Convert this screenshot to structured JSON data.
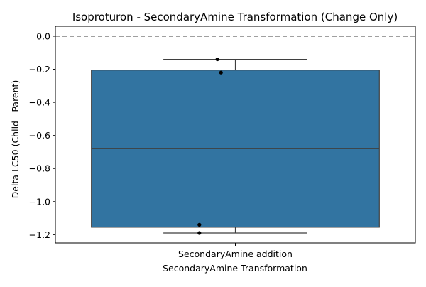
{
  "chart_data": {
    "type": "box",
    "title": "Isoproturon - SecondaryAmine Transformation (Change Only)",
    "xlabel": "SecondaryAmine Transformation",
    "ylabel": "Delta LC50 (Child - Parent)",
    "categories": [
      "SecondaryAmine addition"
    ],
    "ylim": [
      -1.25,
      0.06
    ],
    "yticks": [
      0.0,
      -0.2,
      -0.4,
      -0.6,
      -0.8,
      -1.0,
      -1.2
    ],
    "ytick_labels": [
      "0.0",
      "−0.2",
      "−0.4",
      "−0.6",
      "−0.8",
      "−1.0",
      "−1.2"
    ],
    "reference_line": {
      "y": 0.0,
      "style": "dashed",
      "color": "#808080"
    },
    "boxes": [
      {
        "category": "SecondaryAmine addition",
        "whisker_low": -1.19,
        "q1": -1.155,
        "median": -0.68,
        "q3": -0.205,
        "whisker_high": -0.14,
        "color": "#3274a1"
      }
    ],
    "points": [
      {
        "category": "SecondaryAmine addition",
        "y": -0.14,
        "jitter": -0.05
      },
      {
        "category": "SecondaryAmine addition",
        "y": -0.22,
        "jitter": -0.04
      },
      {
        "category": "SecondaryAmine addition",
        "y": -1.14,
        "jitter": -0.1
      },
      {
        "category": "SecondaryAmine addition",
        "y": -1.19,
        "jitter": -0.1
      }
    ],
    "point_color": "#000000",
    "grid": false,
    "legend": "none"
  }
}
